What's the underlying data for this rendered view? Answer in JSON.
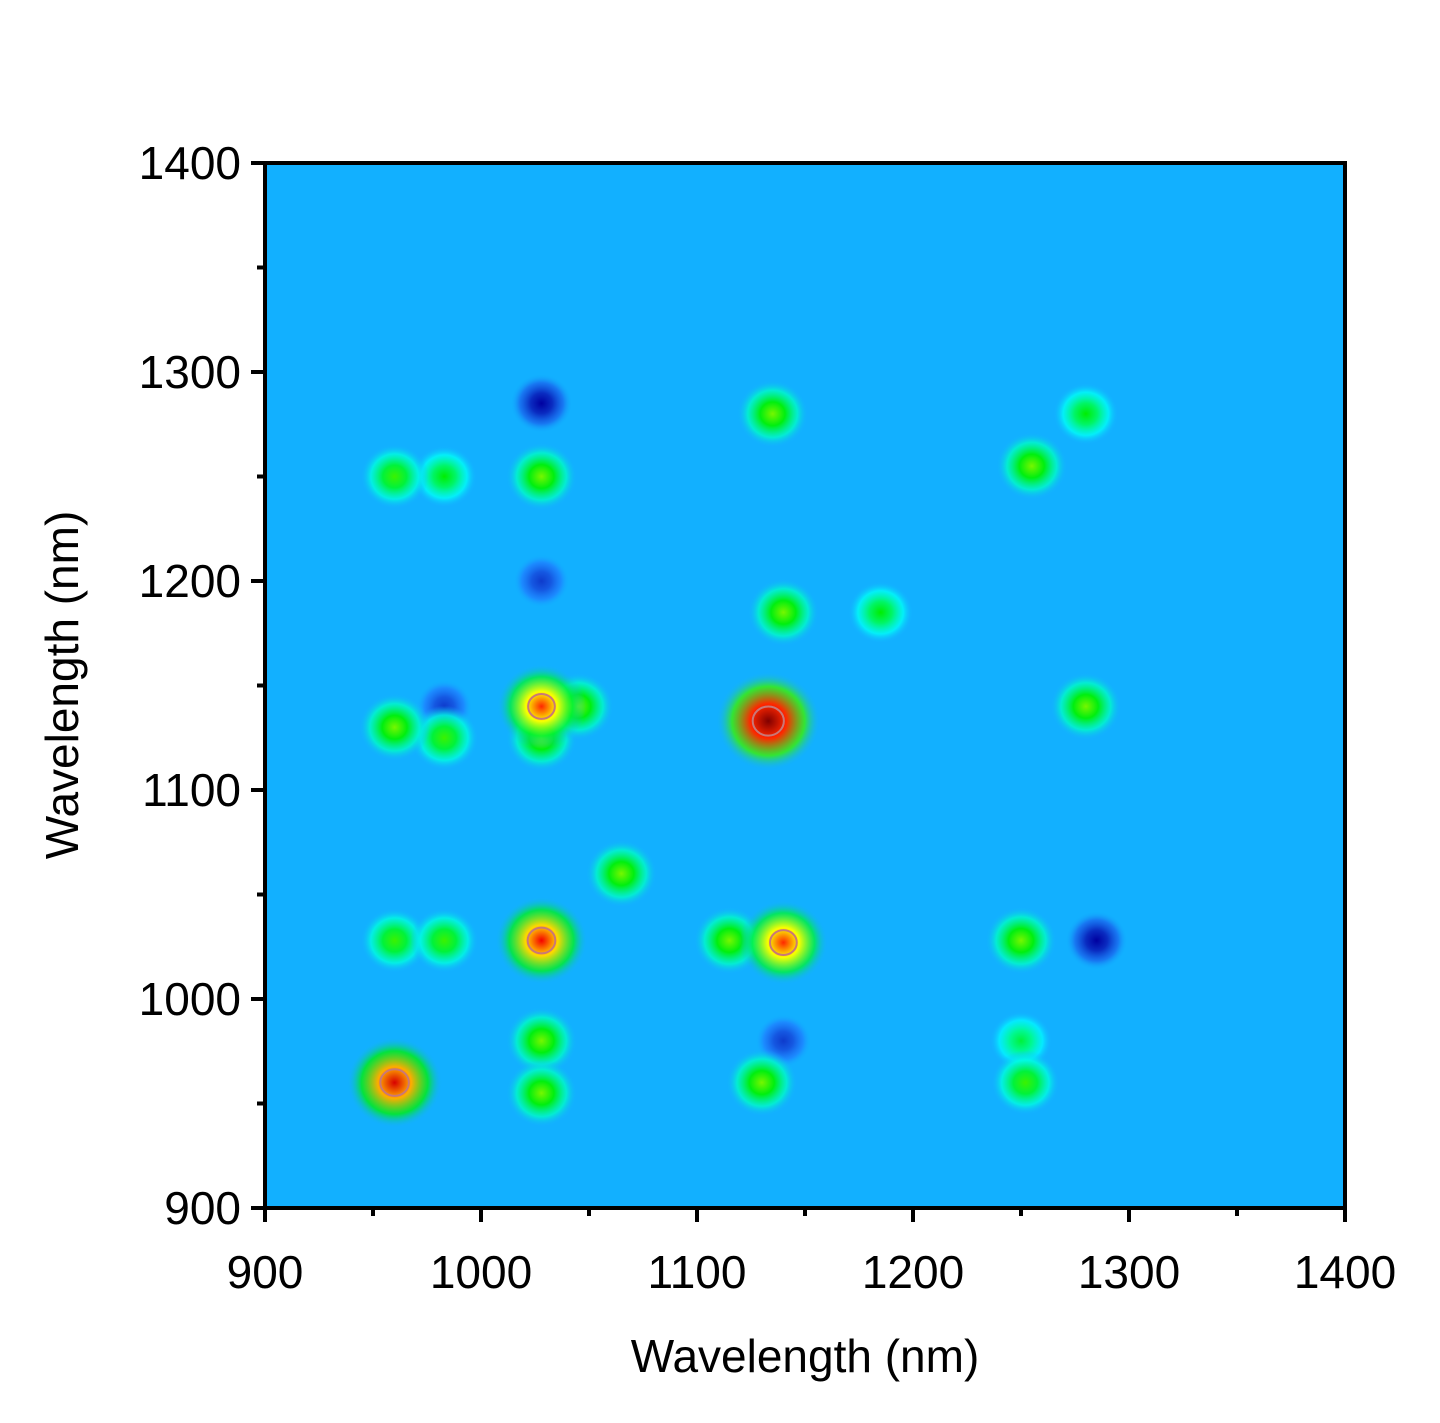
{
  "chart_data": {
    "type": "contour",
    "xlabel": "Wavelength (nm)",
    "ylabel": "Wavelength (nm)",
    "xlim": [
      900,
      1400
    ],
    "ylim": [
      900,
      1400
    ],
    "xticks": [
      900,
      1000,
      1100,
      1200,
      1300,
      1400
    ],
    "yticks": [
      900,
      1000,
      1100,
      1200,
      1300,
      1400
    ],
    "zlim": [
      -0.3,
      1
    ],
    "colormap": [
      "#0000a0",
      "#1e7fff",
      "#00ffff",
      "#00ee00",
      "#ffff00",
      "#ff0000",
      "#800000"
    ],
    "x": [
      960,
      1028,
      1133,
      1028,
      1140,
      1135,
      1255,
      1280,
      1140,
      1185,
      1280,
      1250,
      960,
      983,
      960,
      983,
      1028,
      1045,
      1065,
      1028,
      1028,
      1130,
      1115,
      1028,
      960,
      983,
      1252,
      1250,
      1028,
      1285,
      1140,
      1028,
      983
    ],
    "y": [
      960,
      1028,
      1133,
      1140,
      1027,
      1280,
      1255,
      1280,
      1185,
      1185,
      1140,
      1028,
      1028,
      1028,
      1130,
      1125,
      1125,
      1140,
      1060,
      980,
      955,
      960,
      1028,
      1250,
      1250,
      1250,
      960,
      980,
      1285,
      1028,
      980,
      1200,
      1140
    ],
    "z": [
      0.85,
      0.8,
      1.0,
      0.75,
      0.75,
      0.45,
      0.45,
      0.35,
      0.45,
      0.35,
      0.45,
      0.45,
      0.4,
      0.4,
      0.45,
      0.4,
      0.45,
      0.45,
      0.45,
      0.45,
      0.45,
      0.45,
      0.45,
      0.45,
      0.4,
      0.35,
      0.4,
      0.3,
      -0.3,
      -0.3,
      -0.2,
      -0.2,
      -0.2
    ]
  }
}
